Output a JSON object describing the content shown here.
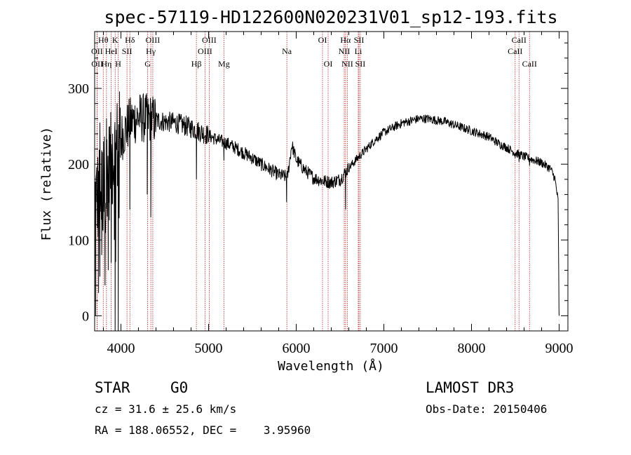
{
  "chart_data": {
    "type": "line",
    "title": "spec-57119-HD122600N020231V01_sp12-193.fits",
    "xlabel": "Wavelength (Å)",
    "ylabel": "Flux (relative)",
    "xlim": [
      3700,
      9100
    ],
    "ylim": [
      -20,
      375
    ],
    "xticks": [
      4000,
      5000,
      6000,
      7000,
      8000,
      9000
    ],
    "yticks": [
      0,
      100,
      200,
      300
    ],
    "xtick_labels": [
      "4000",
      "5000",
      "6000",
      "7000",
      "8000",
      "9000"
    ],
    "ytick_labels": [
      "0",
      "100",
      "200",
      "300"
    ],
    "series": [
      {
        "name": "flux",
        "continuum": [
          [
            3700,
            150
          ],
          [
            3800,
            170
          ],
          [
            3900,
            205
          ],
          [
            4000,
            235
          ],
          [
            4100,
            255
          ],
          [
            4200,
            262
          ],
          [
            4300,
            260
          ],
          [
            4400,
            258
          ],
          [
            4500,
            256
          ],
          [
            4600,
            255
          ],
          [
            4700,
            252
          ],
          [
            4800,
            248
          ],
          [
            4900,
            243
          ],
          [
            5000,
            238
          ],
          [
            5100,
            232
          ],
          [
            5200,
            228
          ],
          [
            5300,
            222
          ],
          [
            5400,
            215
          ],
          [
            5500,
            208
          ],
          [
            5600,
            200
          ],
          [
            5700,
            193
          ],
          [
            5800,
            186
          ],
          [
            5900,
            183
          ],
          [
            5950,
            226
          ],
          [
            6000,
            206
          ],
          [
            6100,
            192
          ],
          [
            6200,
            182
          ],
          [
            6300,
            178
          ],
          [
            6400,
            176
          ],
          [
            6500,
            180
          ],
          [
            6600,
            195
          ],
          [
            6700,
            208
          ],
          [
            6800,
            220
          ],
          [
            6900,
            232
          ],
          [
            7000,
            242
          ],
          [
            7100,
            248
          ],
          [
            7200,
            254
          ],
          [
            7300,
            257
          ],
          [
            7400,
            260
          ],
          [
            7500,
            260
          ],
          [
            7600,
            258
          ],
          [
            7700,
            256
          ],
          [
            7800,
            252
          ],
          [
            7900,
            248
          ],
          [
            8000,
            244
          ],
          [
            8100,
            240
          ],
          [
            8200,
            236
          ],
          [
            8300,
            228
          ],
          [
            8400,
            222
          ],
          [
            8500,
            215
          ],
          [
            8600,
            210
          ],
          [
            8700,
            206
          ],
          [
            8800,
            202
          ],
          [
            8900,
            194
          ],
          [
            8950,
            182
          ],
          [
            8990,
            150
          ]
        ],
        "features": [
          [
            3710,
            0
          ],
          [
            3725,
            150
          ],
          [
            3745,
            30
          ],
          [
            3760,
            255
          ],
          [
            3780,
            80
          ],
          [
            3800,
            230
          ],
          [
            3818,
            40
          ],
          [
            3835,
            260
          ],
          [
            3855,
            60
          ],
          [
            3870,
            250
          ],
          [
            3889,
            70
          ],
          [
            3905,
            240
          ],
          [
            3925,
            100
          ],
          [
            3933.7,
            -20
          ],
          [
            3950,
            220
          ],
          [
            3968.5,
            -20
          ],
          [
            3985,
            250
          ],
          [
            4101.7,
            140
          ],
          [
            4300,
            160
          ],
          [
            4340.5,
            130
          ],
          [
            4861.3,
            180
          ],
          [
            5175,
            205
          ],
          [
            5890,
            150
          ],
          [
            6562.8,
            140
          ],
          [
            8498,
            208
          ],
          [
            8542,
            203
          ],
          [
            8662,
            198
          ],
          [
            8995,
            60
          ],
          [
            8998,
            5
          ],
          [
            9000,
            0
          ]
        ]
      }
    ],
    "spectral_lines": [
      {
        "name": "Hθ",
        "wavelength": 3798,
        "row": 1
      },
      {
        "name": "OII",
        "wavelength": 3727,
        "row": 2
      },
      {
        "name": "OII",
        "wavelength": 3729,
        "row": 3
      },
      {
        "name": "Hη",
        "wavelength": 3835,
        "row": 3
      },
      {
        "name": "K",
        "wavelength": 3934,
        "row": 1
      },
      {
        "name": "H",
        "wavelength": 3969,
        "row": 3
      },
      {
        "name": "HeI",
        "wavelength": 3889,
        "row": 2
      },
      {
        "name": "SII",
        "wavelength": 4069,
        "row": 2
      },
      {
        "name": "Hδ",
        "wavelength": 4102,
        "row": 1
      },
      {
        "name": "OIII",
        "wavelength": 4363,
        "row": 1
      },
      {
        "name": "Hγ",
        "wavelength": 4341,
        "row": 2
      },
      {
        "name": "G",
        "wavelength": 4305,
        "row": 3
      },
      {
        "name": "Hβ",
        "wavelength": 4861,
        "row": 3
      },
      {
        "name": "OIII",
        "wavelength": 5007,
        "row": 1
      },
      {
        "name": "OIII",
        "wavelength": 4959,
        "row": 2
      },
      {
        "name": "Mg",
        "wavelength": 5175,
        "row": 3
      },
      {
        "name": "Na",
        "wavelength": 5893,
        "row": 2
      },
      {
        "name": "OI",
        "wavelength": 6300,
        "row": 1
      },
      {
        "name": "OI",
        "wavelength": 6364,
        "row": 3
      },
      {
        "name": "Hα",
        "wavelength": 6563,
        "row": 1
      },
      {
        "name": "NII",
        "wavelength": 6548,
        "row": 2
      },
      {
        "name": "NII",
        "wavelength": 6583,
        "row": 3
      },
      {
        "name": "SII",
        "wavelength": 6716,
        "row": 1
      },
      {
        "name": "Li",
        "wavelength": 6708,
        "row": 2
      },
      {
        "name": "SII",
        "wavelength": 6731,
        "row": 3
      },
      {
        "name": "CaII",
        "wavelength": 8542,
        "row": 1
      },
      {
        "name": "CaII",
        "wavelength": 8498,
        "row": 2
      },
      {
        "name": "CaII",
        "wavelength": 8662,
        "row": 3
      }
    ]
  },
  "info": {
    "object_class": "STAR",
    "subclass": "G0",
    "survey": "LAMOST DR3",
    "cz": "cz = 31.6 ± 25.6 km/s",
    "obs_date": "Obs-Date: 20150406",
    "ra_dec": "RA = 188.06552, DEC =    3.95960"
  },
  "colors": {
    "line": "#000000",
    "marker": "#b22222"
  }
}
